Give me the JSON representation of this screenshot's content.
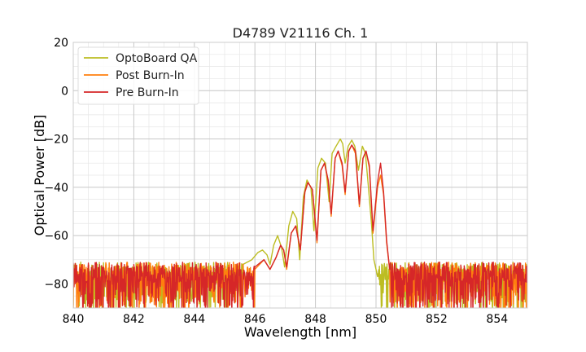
{
  "chart_data": {
    "type": "line",
    "title": "D4789 V21116 Ch. 1",
    "xlabel": "Wavelength [nm]",
    "ylabel": "Optical Power [dB]",
    "xlim": [
      840,
      855
    ],
    "ylim": [
      -90,
      20
    ],
    "xticks": [
      840,
      842,
      844,
      846,
      848,
      850,
      852,
      854
    ],
    "yticks": [
      20,
      0,
      -20,
      -40,
      -60,
      -80
    ],
    "x_minor_step": 0.5,
    "y_minor_step": 5,
    "grid": true,
    "legend_position": "top-left",
    "noise_floor": -80,
    "series": [
      {
        "name": "OptoBoard QA",
        "color": "#bcbd22",
        "points": [
          [
            845.6,
            -72
          ],
          [
            845.9,
            -70
          ],
          [
            846.1,
            -67
          ],
          [
            846.25,
            -66
          ],
          [
            846.4,
            -68
          ],
          [
            846.5,
            -72
          ],
          [
            846.62,
            -64
          ],
          [
            846.75,
            -60
          ],
          [
            846.88,
            -65
          ],
          [
            846.98,
            -73
          ],
          [
            847.12,
            -56
          ],
          [
            847.25,
            -50
          ],
          [
            847.38,
            -53
          ],
          [
            847.48,
            -70
          ],
          [
            847.6,
            -44
          ],
          [
            847.72,
            -37
          ],
          [
            847.85,
            -40
          ],
          [
            847.95,
            -58
          ],
          [
            848.08,
            -32
          ],
          [
            848.2,
            -28
          ],
          [
            848.33,
            -30
          ],
          [
            848.45,
            -46
          ],
          [
            848.55,
            -26
          ],
          [
            848.68,
            -23
          ],
          [
            848.82,
            -20
          ],
          [
            848.9,
            -22
          ],
          [
            848.98,
            -30
          ],
          [
            849.08,
            -23
          ],
          [
            849.2,
            -20.5
          ],
          [
            849.3,
            -23
          ],
          [
            849.42,
            -33
          ],
          [
            849.55,
            -23
          ],
          [
            849.65,
            -26
          ],
          [
            849.75,
            -40
          ],
          [
            849.85,
            -55
          ],
          [
            849.93,
            -70
          ],
          [
            850.0,
            -74
          ],
          [
            850.05,
            -77
          ]
        ]
      },
      {
        "name": "Post Burn-In",
        "color": "#ff7f0e",
        "points": [
          [
            846.0,
            -74
          ],
          [
            846.3,
            -70
          ],
          [
            846.5,
            -74
          ],
          [
            846.7,
            -69
          ],
          [
            846.85,
            -64
          ],
          [
            846.95,
            -66
          ],
          [
            847.05,
            -74
          ],
          [
            847.2,
            -59
          ],
          [
            847.35,
            -56
          ],
          [
            847.5,
            -66
          ],
          [
            847.65,
            -42
          ],
          [
            847.75,
            -38
          ],
          [
            847.9,
            -41
          ],
          [
            848.05,
            -63
          ],
          [
            848.18,
            -33
          ],
          [
            848.3,
            -30
          ],
          [
            848.42,
            -38
          ],
          [
            848.52,
            -52
          ],
          [
            848.65,
            -28
          ],
          [
            848.75,
            -25
          ],
          [
            848.88,
            -31
          ],
          [
            848.98,
            -43
          ],
          [
            849.1,
            -25
          ],
          [
            849.2,
            -22.5
          ],
          [
            849.32,
            -26
          ],
          [
            849.45,
            -48
          ],
          [
            849.57,
            -28
          ],
          [
            849.67,
            -25
          ],
          [
            849.78,
            -32
          ],
          [
            849.9,
            -59
          ],
          [
            850.05,
            -40
          ],
          [
            850.15,
            -35
          ],
          [
            850.25,
            -43
          ],
          [
            850.35,
            -63
          ],
          [
            850.45,
            -74
          ]
        ]
      },
      {
        "name": "Pre Burn-In",
        "color": "#d62728",
        "points": [
          [
            846.0,
            -73
          ],
          [
            846.3,
            -70
          ],
          [
            846.5,
            -74
          ],
          [
            846.7,
            -69
          ],
          [
            846.85,
            -64
          ],
          [
            846.95,
            -66
          ],
          [
            847.05,
            -73
          ],
          [
            847.2,
            -59
          ],
          [
            847.35,
            -56
          ],
          [
            847.5,
            -66
          ],
          [
            847.65,
            -42
          ],
          [
            847.75,
            -38
          ],
          [
            847.9,
            -41
          ],
          [
            848.05,
            -62
          ],
          [
            848.18,
            -33
          ],
          [
            848.3,
            -30
          ],
          [
            848.42,
            -37
          ],
          [
            848.52,
            -51
          ],
          [
            848.65,
            -28
          ],
          [
            848.75,
            -25
          ],
          [
            848.88,
            -30
          ],
          [
            848.98,
            -42
          ],
          [
            849.1,
            -25
          ],
          [
            849.2,
            -22.5
          ],
          [
            849.32,
            -25
          ],
          [
            849.45,
            -47
          ],
          [
            849.57,
            -28
          ],
          [
            849.67,
            -25
          ],
          [
            849.78,
            -31
          ],
          [
            849.9,
            -58
          ],
          [
            850.05,
            -38
          ],
          [
            850.15,
            -30
          ],
          [
            850.25,
            -42
          ],
          [
            850.35,
            -62
          ],
          [
            850.45,
            -74
          ]
        ]
      }
    ]
  }
}
